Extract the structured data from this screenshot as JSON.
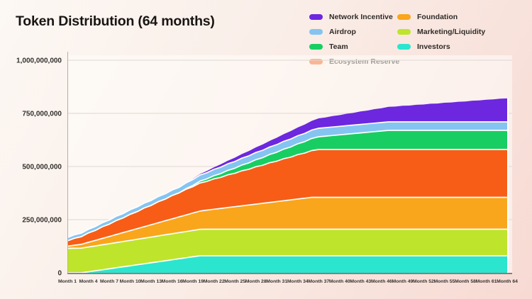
{
  "title": "Token Distribution (64 months)",
  "legend": {
    "columns": [
      [
        {
          "label": "Network Incentive",
          "color": "#6C27DF"
        },
        {
          "label": "Airdrop",
          "color": "#85C4F0"
        },
        {
          "label": "Team",
          "color": "#18CE62"
        },
        {
          "label": "Ecosystem Reserve",
          "color": "#F75D17"
        }
      ],
      [
        {
          "label": "Foundation",
          "color": "#F9A61C"
        },
        {
          "label": "Marketing/Liquidity",
          "color": "#BFE42C"
        },
        {
          "label": "Investors",
          "color": "#2BE5CE"
        }
      ]
    ]
  },
  "chart_data": {
    "type": "area",
    "stacked": true,
    "title": "Token Distribution (64 months)",
    "unit": "tokens (series values in millions of tokens)",
    "grid": "horizontal",
    "legend_position": "top-right",
    "x_axis": {
      "min_month": 1,
      "max_month": 64,
      "tick_months": [
        1,
        4,
        7,
        10,
        13,
        16,
        19,
        22,
        25,
        28,
        31,
        34,
        37,
        40,
        43,
        46,
        49,
        52,
        55,
        58,
        61,
        64
      ],
      "tick_labels": [
        "Month 1",
        "Month 4",
        "Month 7",
        "Month 10",
        "Month 13",
        "Month 16",
        "Month 19",
        "Month 22",
        "Month 25",
        "Month 28",
        "Month 31",
        "Month 34",
        "Month 37",
        "Month 40",
        "Month 43",
        "Month 46",
        "Month 49",
        "Month 52",
        "Month 55",
        "Month 58",
        "Month 61",
        "Month 64"
      ]
    },
    "y_axis": {
      "max_millions": 1000,
      "tick_values_millions": [
        1000,
        750,
        500,
        250,
        0
      ],
      "tick_labels": [
        "1,000,000,000",
        "750,000,000",
        "500,000,000",
        "250,000,000",
        "0"
      ]
    },
    "stack_order_bottom_to_top": [
      "Investors",
      "Marketing/Liquidity",
      "Foundation",
      "Ecosystem Reserve",
      "Team",
      "Airdrop",
      "Network Incentive"
    ],
    "series": [
      {
        "name": "Investors",
        "color": "#2BE5CE",
        "values": [
          0,
          0,
          0,
          4.7,
          9.4,
          14.1,
          18.8,
          23.5,
          28.2,
          32.9,
          37.6,
          42.4,
          47.1,
          51.8,
          56.5,
          61.2,
          65.9,
          70.6,
          75.3,
          80,
          80,
          80,
          80,
          80,
          80,
          80,
          80,
          80,
          80,
          80,
          80,
          80,
          80,
          80,
          80,
          80,
          80,
          80,
          80,
          80,
          80,
          80,
          80,
          80,
          80,
          80,
          80,
          80,
          80,
          80,
          80,
          80,
          80,
          80,
          80,
          80,
          80,
          80,
          80,
          80,
          80,
          80,
          80,
          80
        ]
      },
      {
        "name": "Marketing/Liquidity",
        "color": "#BFE42C",
        "values": [
          115,
          115.5,
          116,
          116.5,
          117,
          117.5,
          118,
          118.5,
          119,
          119.5,
          120,
          120.5,
          121,
          121.5,
          122,
          122.5,
          123,
          123.5,
          124,
          124.5,
          125,
          125,
          125,
          125,
          125,
          125,
          125,
          125,
          125,
          125,
          125,
          125,
          125,
          125,
          125,
          125,
          125,
          125,
          125,
          125,
          125,
          125,
          125,
          125,
          125,
          125,
          125,
          125,
          125,
          125,
          125,
          125,
          125,
          125,
          125,
          125,
          125,
          125,
          125,
          125,
          125,
          125,
          125,
          125
        ]
      },
      {
        "name": "Foundation",
        "color": "#F9A61C",
        "values": [
          10,
          14,
          18,
          22,
          26,
          30,
          34,
          38,
          42,
          46,
          50,
          54,
          58,
          62,
          66,
          70,
          74,
          78,
          82,
          86,
          90,
          94,
          98,
          102,
          106,
          110,
          114,
          118,
          122,
          126,
          130,
          134,
          138,
          142,
          146,
          150,
          150,
          150,
          150,
          150,
          150,
          150,
          150,
          150,
          150,
          150,
          150,
          150,
          150,
          150,
          150,
          150,
          150,
          150,
          150,
          150,
          150,
          150,
          150,
          150,
          150,
          150,
          150,
          150
        ]
      },
      {
        "name": "Ecosystem Reserve",
        "color": "#F75D17",
        "values": [
          25,
          33,
          36,
          44,
          47,
          55,
          58,
          66,
          69,
          77,
          80,
          88,
          91,
          99,
          102,
          110,
          113,
          121,
          124,
          132,
          135,
          143,
          146,
          154,
          157,
          165,
          168,
          176,
          179,
          187,
          190,
          198,
          201,
          209,
          212,
          220,
          225,
          225,
          225,
          225,
          225,
          225,
          225,
          225,
          225,
          225,
          225,
          225,
          225,
          225,
          225,
          225,
          225,
          225,
          225,
          225,
          225,
          225,
          225,
          225,
          225,
          225,
          225,
          225
        ]
      },
      {
        "name": "Team",
        "color": "#18CE62",
        "values": [
          0,
          0,
          0,
          0,
          0,
          0,
          0,
          0,
          0,
          0,
          0,
          0,
          0,
          0,
          0,
          0,
          0,
          3,
          6,
          9,
          12,
          15,
          18,
          21,
          24,
          27,
          30,
          33,
          36,
          39,
          42,
          45,
          48,
          51,
          54,
          57,
          60,
          63,
          66,
          69,
          72,
          75,
          78,
          81,
          84,
          87,
          90,
          90,
          90,
          90,
          90,
          90,
          90,
          90,
          90,
          90,
          90,
          90,
          90,
          90,
          90,
          90,
          90,
          90
        ]
      },
      {
        "name": "Airdrop",
        "color": "#85C4F0",
        "values": [
          15,
          15.7,
          16.4,
          17.1,
          17.8,
          18.5,
          19.2,
          19.9,
          20.6,
          21.3,
          22,
          22.7,
          23.4,
          24.1,
          24.8,
          25.5,
          26.2,
          26.9,
          27.6,
          28.3,
          29,
          29.7,
          30.4,
          31.1,
          31.8,
          32.5,
          33.2,
          33.9,
          34.6,
          35.3,
          36,
          36.7,
          37.4,
          38.1,
          38.8,
          39.5,
          40,
          40,
          40,
          40,
          40,
          40,
          40,
          40,
          40,
          40,
          40,
          40,
          40,
          40,
          40,
          40,
          40,
          40,
          40,
          40,
          40,
          40,
          40,
          40,
          40,
          40,
          40,
          40
        ]
      },
      {
        "name": "Network Incentive",
        "color": "#6C27DF",
        "values": [
          0,
          0,
          0,
          0,
          0,
          0,
          0,
          0,
          0,
          0,
          0,
          0,
          0,
          0,
          0,
          0,
          0,
          0,
          3.6,
          4.8,
          8.4,
          9.6,
          13.2,
          14.4,
          18,
          19.2,
          22.8,
          24,
          27.6,
          28.8,
          32.4,
          33.6,
          37.2,
          38.4,
          42,
          43.2,
          46.8,
          48,
          51.6,
          52.8,
          56.4,
          57.6,
          61.2,
          62.4,
          66,
          67.2,
          70.8,
          72,
          75.6,
          76.8,
          80.4,
          81.6,
          85.2,
          86.4,
          90,
          91.2,
          94.8,
          96,
          99.6,
          100.8,
          104.4,
          105.6,
          109.2,
          110.4
        ]
      }
    ],
    "colors": {
      "plot_background": "rgba(255,253,250,0.55)",
      "gridline": "#DFD8D2",
      "axis_left": "#B5AFAA",
      "axis_bottom": "#4A4442",
      "band_divider": "#FFFFFF"
    }
  }
}
